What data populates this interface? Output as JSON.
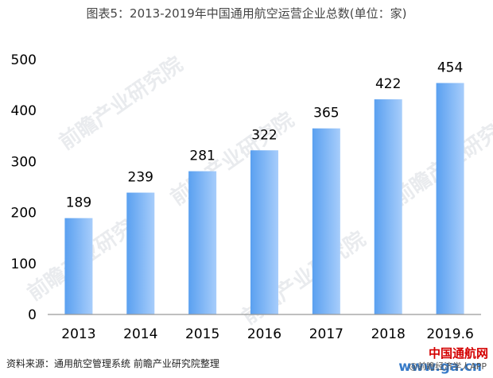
{
  "title": "图表5：2013-2019年中国通用航空运营企业总数(单位：家)",
  "source": "资料来源：通用航空管理系统 前瞻产业研究院整理",
  "watermarks": {
    "ghost": "前瞻产业研究院",
    "brand": "中国通航网",
    "url": "www.ga.cn",
    "app": "@前瞻经济学人APP"
  },
  "colors": {
    "bar_start": "#5aa0f0",
    "bar_end": "#a7cdfb",
    "axis": "#999999",
    "text": "#000000"
  },
  "chart_data": {
    "type": "bar",
    "categories": [
      "2013",
      "2014",
      "2015",
      "2016",
      "2017",
      "2018",
      "2019.6"
    ],
    "values": [
      189,
      239,
      281,
      322,
      365,
      422,
      454
    ],
    "ylim": [
      0,
      500
    ],
    "yticks": [
      0,
      100,
      200,
      300,
      400,
      500
    ],
    "grid": false,
    "data_labels": true
  }
}
